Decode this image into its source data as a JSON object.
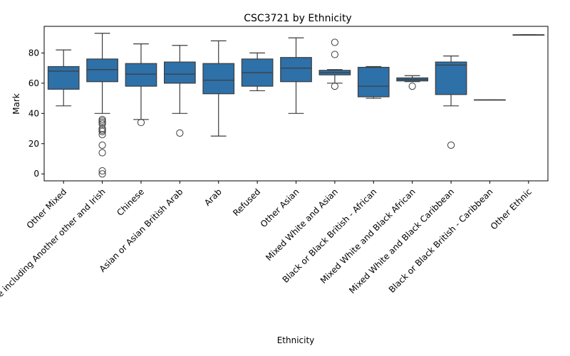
{
  "chart_data": {
    "type": "box",
    "title": "CSC3721 by Ethnicity",
    "xlabel": "Ethnicity",
    "ylabel": "Mark",
    "ylim": [
      -4.6,
      97.6
    ],
    "yticks": [
      0,
      20,
      40,
      60,
      80
    ],
    "grid": false,
    "box_color": "#2e70a8",
    "line_color": "#3d3d3d",
    "categories": [
      {
        "label": "Other Mixed",
        "whislo": 45,
        "q1": 56,
        "med": 68,
        "q3": 71,
        "whishi": 82,
        "fliers": []
      },
      {
        "label": "White including Another other and Irish",
        "whislo": 40,
        "q1": 61,
        "med": 69,
        "q3": 76,
        "whishi": 93,
        "fliers": [
          36,
          35,
          34,
          33,
          30,
          29,
          28,
          26,
          19,
          14,
          2,
          0
        ]
      },
      {
        "label": "Chinese",
        "whislo": 36,
        "q1": 58,
        "med": 66,
        "q3": 73,
        "whishi": 86,
        "fliers": [
          34
        ]
      },
      {
        "label": "Asian or Asian British Arab",
        "whislo": 40,
        "q1": 60,
        "med": 66,
        "q3": 74,
        "whishi": 85,
        "fliers": [
          27
        ]
      },
      {
        "label": "Arab",
        "whislo": 25,
        "q1": 53,
        "med": 62,
        "q3": 73,
        "whishi": 88,
        "fliers": []
      },
      {
        "label": "Refused",
        "whislo": 55,
        "q1": 58,
        "med": 67,
        "q3": 76,
        "whishi": 80,
        "fliers": []
      },
      {
        "label": "Other Asian",
        "whislo": 40,
        "q1": 61,
        "med": 70,
        "q3": 77,
        "whishi": 90,
        "fliers": []
      },
      {
        "label": "Mixed White and Asian",
        "whislo": 60,
        "q1": 65.5,
        "med": 67,
        "q3": 68.5,
        "whishi": 69,
        "fliers": [
          87,
          79,
          58
        ]
      },
      {
        "label": "Black or Black British - African",
        "whislo": 50,
        "q1": 51,
        "med": 58,
        "q3": 70.5,
        "whishi": 71,
        "fliers": []
      },
      {
        "label": "Mixed White and Black African",
        "whislo": 61,
        "q1": 61.5,
        "med": 62.5,
        "q3": 63.5,
        "whishi": 65,
        "fliers": [
          58
        ]
      },
      {
        "label": "Mixed White and Black Caribbean",
        "whislo": 45,
        "q1": 52.5,
        "med": 72,
        "q3": 74,
        "whishi": 78,
        "fliers": [
          19
        ]
      },
      {
        "label": "Black or Black British - Caribbean",
        "whislo": 49,
        "q1": 49,
        "med": 49,
        "q3": 49,
        "whishi": 49,
        "fliers": []
      },
      {
        "label": "Other Ethnic",
        "whislo": 92,
        "q1": 92,
        "med": 92,
        "q3": 92,
        "whishi": 92,
        "fliers": []
      }
    ]
  }
}
